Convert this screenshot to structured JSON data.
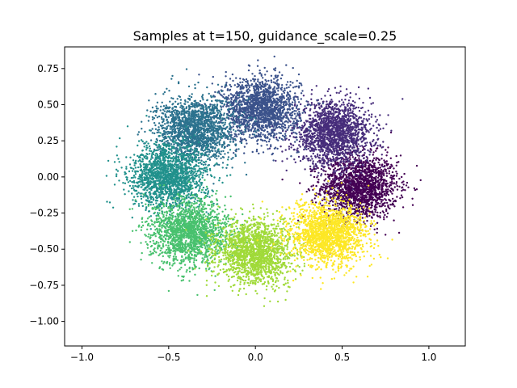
{
  "chart_data": {
    "type": "scatter",
    "title": "Samples at t=150, guidance_scale=0.25",
    "xlabel": "",
    "ylabel": "",
    "xlim": [
      -1.1,
      1.21
    ],
    "ylim": [
      -1.17,
      0.9
    ],
    "x_ticks": [
      -1.0,
      -0.5,
      0.0,
      0.5,
      1.0
    ],
    "x_tick_labels": [
      "−1.0",
      "−0.5",
      "0.0",
      "0.5",
      "1.0"
    ],
    "y_ticks": [
      0.75,
      0.5,
      0.25,
      0.0,
      -0.25,
      -0.5,
      -0.75,
      -1.0
    ],
    "y_tick_labels": [
      "0.75",
      "0.50",
      "0.25",
      "0.00",
      "−0.25",
      "−0.50",
      "−0.75",
      "−1.00"
    ],
    "grid": false,
    "legend": "none",
    "marker_size": 1.2,
    "clusters": [
      {
        "center": [
          0.6,
          -0.07
        ],
        "spread": [
          0.11,
          0.11
        ],
        "count": 1700,
        "color": "#440154"
      },
      {
        "center": [
          0.45,
          0.3
        ],
        "spread": [
          0.11,
          0.11
        ],
        "count": 1700,
        "color": "#472d7b"
      },
      {
        "center": [
          0.03,
          0.47
        ],
        "spread": [
          0.11,
          0.11
        ],
        "count": 1700,
        "color": "#3b528b"
      },
      {
        "center": [
          -0.35,
          0.33
        ],
        "spread": [
          0.11,
          0.11
        ],
        "count": 1700,
        "color": "#2c728e"
      },
      {
        "center": [
          -0.5,
          0.0
        ],
        "spread": [
          0.11,
          0.11
        ],
        "count": 1700,
        "color": "#21918c"
      },
      {
        "center": [
          -0.38,
          -0.38
        ],
        "spread": [
          0.11,
          0.11
        ],
        "count": 1700,
        "color": "#48c16e"
      },
      {
        "center": [
          0.0,
          -0.52
        ],
        "spread": [
          0.11,
          0.11
        ],
        "count": 1700,
        "color": "#a0da39"
      },
      {
        "center": [
          0.42,
          -0.4
        ],
        "spread": [
          0.11,
          0.11
        ],
        "count": 1700,
        "color": "#fde725"
      }
    ]
  }
}
